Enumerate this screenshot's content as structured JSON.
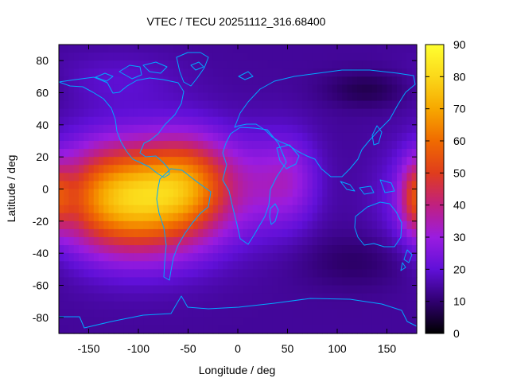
{
  "chart_data": {
    "type": "heatmap",
    "title": "VTEC / TECU 20251112_316.68400",
    "xlabel": "Longitude / deg",
    "ylabel": "Latitude / deg",
    "xlim": [
      -180,
      180
    ],
    "ylim": [
      -90,
      90
    ],
    "x_ticks": [
      -150,
      -100,
      -50,
      0,
      50,
      100,
      150
    ],
    "y_ticks": [
      -80,
      -60,
      -40,
      -20,
      0,
      20,
      40,
      60,
      80
    ],
    "colorbar": {
      "range": [
        0,
        90
      ],
      "ticks": [
        0,
        10,
        20,
        30,
        40,
        50,
        60,
        70,
        80,
        90
      ],
      "palette": [
        "#000000",
        "#300070",
        "#6010d8",
        "#9a1ce0",
        "#c02080",
        "#e03d1c",
        "#f06b00",
        "#f7a800",
        "#fbd81a",
        "#ffff30"
      ]
    },
    "grid": {
      "lon_step": 5,
      "lat_step": 5,
      "background_tecu": 14,
      "components": [
        {
          "lon": -93,
          "lat": -6,
          "sigma_lon": 52,
          "sigma_lat": 24,
          "tecu": 56
        },
        {
          "lon": -45,
          "lat": 6,
          "sigma_lon": 30,
          "sigma_lat": 20,
          "tecu": 22
        },
        {
          "lon": -140,
          "lat": -5,
          "sigma_lon": 35,
          "sigma_lat": 22,
          "tecu": 16
        },
        {
          "lon": 25,
          "lat": 4,
          "sigma_lon": 25,
          "sigma_lat": 22,
          "tecu": 10
        },
        {
          "lon": 55,
          "lat": 5,
          "sigma_lon": 20,
          "sigma_lat": 20,
          "tecu": 12
        },
        {
          "lon": 178,
          "lat": -5,
          "sigma_lon": 10,
          "sigma_lat": 15,
          "tecu": 20
        },
        {
          "lon": -120,
          "lat": 68,
          "sigma_lon": 45,
          "sigma_lat": 12,
          "tecu": 5
        },
        {
          "lon": 130,
          "lat": 62,
          "sigma_lon": 30,
          "sigma_lat": 8,
          "tecu": -7
        },
        {
          "lon": 120,
          "lat": -45,
          "sigma_lon": 40,
          "sigma_lat": 12,
          "tecu": -5
        }
      ]
    }
  }
}
